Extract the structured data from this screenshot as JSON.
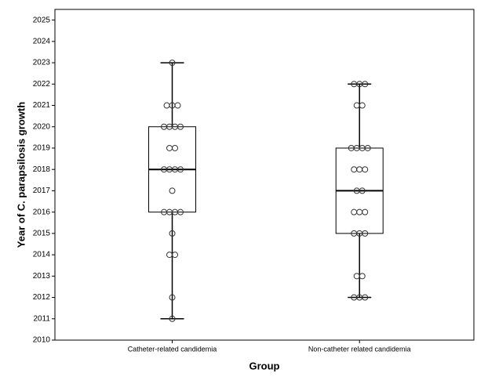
{
  "chart_data": {
    "type": "box",
    "ylabel": "Year of C. parapsilosis growth",
    "xlabel": "Group",
    "categories": [
      "Catheter-related candidemia",
      "Non-catheter related candidemia"
    ],
    "boxes": [
      {
        "min": 2011,
        "q1": 2016,
        "median": 2018,
        "q3": 2020,
        "max": 2023,
        "points": [
          2023,
          2021,
          2021,
          2021,
          2020,
          2020,
          2020,
          2020,
          2019,
          2019,
          2018,
          2018,
          2018,
          2018,
          2017,
          2016,
          2016,
          2016,
          2016,
          2015,
          2014,
          2014,
          2012,
          2011
        ]
      },
      {
        "min": 2012,
        "q1": 2015,
        "median": 2017,
        "q3": 2019,
        "max": 2022,
        "points": [
          2022,
          2022,
          2022,
          2021,
          2021,
          2019,
          2019,
          2019,
          2019,
          2018,
          2018,
          2018,
          2017,
          2017,
          2016,
          2016,
          2016,
          2015,
          2015,
          2015,
          2013,
          2013,
          2012,
          2012,
          2012
        ]
      }
    ],
    "color": "#000000",
    "ylim": [
      2010,
      2025.5
    ],
    "yticks": [
      2010,
      2011,
      2012,
      2013,
      2014,
      2015,
      2016,
      2017,
      2018,
      2019,
      2020,
      2021,
      2022,
      2023,
      2024,
      2025
    ]
  }
}
